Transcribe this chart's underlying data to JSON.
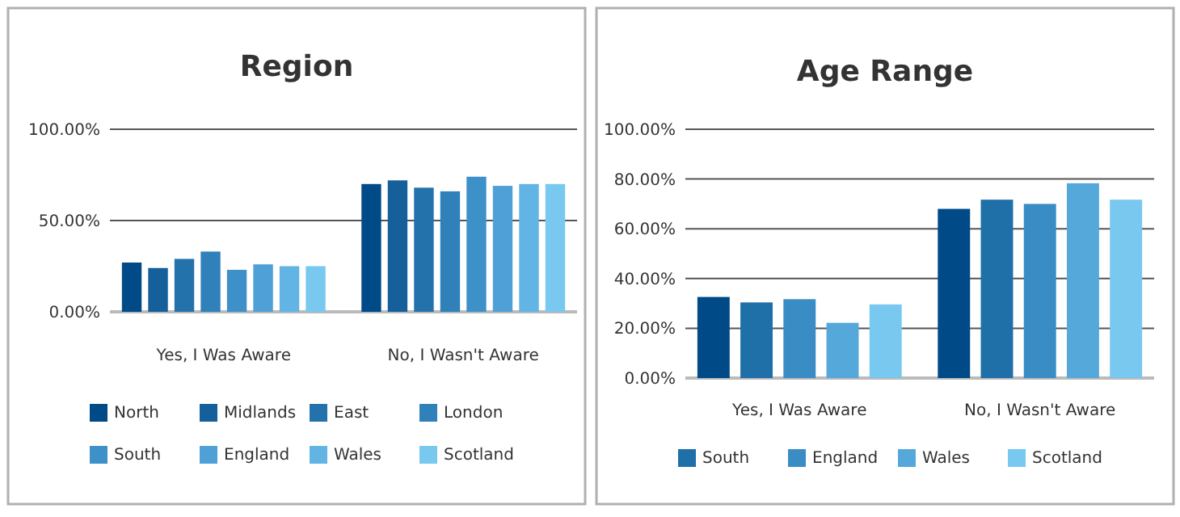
{
  "chart_data": [
    {
      "type": "bar",
      "title": "Region",
      "categories": [
        "Yes, I Was Aware",
        "No, I Wasn't Aware"
      ],
      "series": [
        {
          "name": "North",
          "color": "#004a87",
          "values": [
            27,
            70
          ]
        },
        {
          "name": "Midlands",
          "color": "#155f9a",
          "values": [
            24,
            72
          ]
        },
        {
          "name": "East",
          "color": "#2472ab",
          "values": [
            29,
            68
          ]
        },
        {
          "name": "London",
          "color": "#3080ba",
          "values": [
            33,
            66
          ]
        },
        {
          "name": "South",
          "color": "#3e90c8",
          "values": [
            23,
            74
          ]
        },
        {
          "name": "England",
          "color": "#4ea0d6",
          "values": [
            26,
            69
          ]
        },
        {
          "name": "Wales",
          "color": "#62b4e4",
          "values": [
            25,
            70
          ]
        },
        {
          "name": "Scotland",
          "color": "#78c8f0",
          "values": [
            25,
            70
          ]
        }
      ],
      "ylim": [
        0,
        100
      ],
      "yticks": [
        {
          "value": 0,
          "label": "0.00%"
        },
        {
          "value": 50,
          "label": "50.00%"
        },
        {
          "value": 100,
          "label": "100.00%"
        }
      ],
      "grid": "y",
      "legend": "bottom"
    },
    {
      "type": "bar",
      "title": "Age Range",
      "categories": [
        "Yes, I Was Aware",
        "No, I Wasn't Aware"
      ],
      "series": [
        {
          "color": "#004a87",
          "values": [
            32.6,
            68.0
          ]
        },
        {
          "name": "South",
          "color": "#1f6fa8",
          "values": [
            30.4,
            71.7
          ]
        },
        {
          "name": "England",
          "color": "#3a8cc4",
          "values": [
            31.7,
            70.0
          ]
        },
        {
          "name": "Wales",
          "color": "#55a8da",
          "values": [
            22.2,
            78.3
          ]
        },
        {
          "name": "Scotland",
          "color": "#78c8f0",
          "values": [
            29.6,
            71.7
          ]
        }
      ],
      "ylim": [
        0,
        100
      ],
      "yticks": [
        {
          "value": 0,
          "label": "0.00%"
        },
        {
          "value": 20,
          "label": "20.00%"
        },
        {
          "value": 40,
          "label": "40.00%"
        },
        {
          "value": 60,
          "label": "60.00%"
        },
        {
          "value": 80,
          "label": "80.00%"
        },
        {
          "value": 100,
          "label": "100.00%"
        }
      ],
      "grid": "y",
      "legend": "bottom"
    }
  ]
}
